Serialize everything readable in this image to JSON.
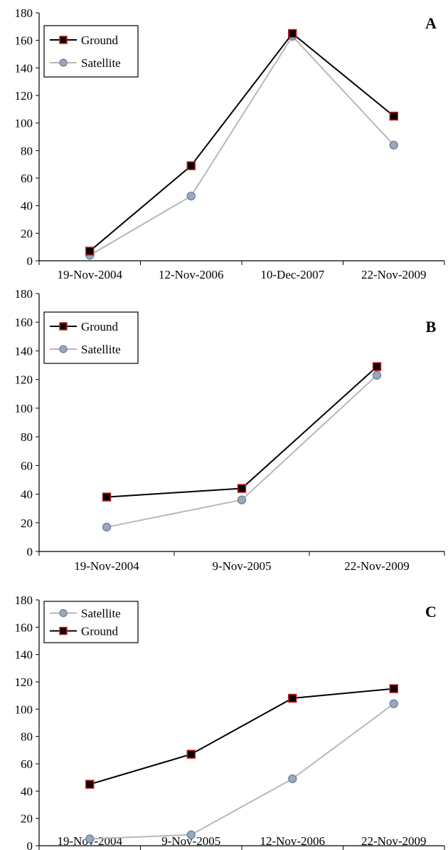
{
  "chart_data": [
    {
      "type": "line",
      "panel_label": "A",
      "title": "",
      "xlabel": "",
      "ylabel": "",
      "categories": [
        "19-Nov-2004",
        "12-Nov-2006",
        "10-Dec-2007",
        "22-Nov-2009"
      ],
      "ylim": [
        0,
        180
      ],
      "yticks": [
        0,
        20,
        40,
        60,
        80,
        100,
        120,
        140,
        160,
        180
      ],
      "legend_position": "top-left",
      "series": [
        {
          "name": "Ground",
          "values": [
            7,
            69,
            165,
            105
          ],
          "color": "#000000",
          "marker": "square",
          "marker_fill": "#000000",
          "marker_edge": "#cc2222"
        },
        {
          "name": "Satellite",
          "values": [
            4,
            47,
            163,
            84
          ],
          "color": "#b8b8b8",
          "marker": "circle",
          "marker_fill": "#9aa8bc",
          "marker_edge": "#6b7f99"
        }
      ]
    },
    {
      "type": "line",
      "panel_label": "B",
      "title": "",
      "xlabel": "",
      "ylabel": "",
      "categories": [
        "19-Nov-2004",
        "9-Nov-2005",
        "22-Nov-2009"
      ],
      "ylim": [
        0,
        180
      ],
      "yticks": [
        0,
        20,
        40,
        60,
        80,
        100,
        120,
        140,
        160,
        180
      ],
      "legend_position": "top-left",
      "series": [
        {
          "name": "Ground",
          "values": [
            38,
            44,
            129
          ],
          "color": "#000000",
          "marker": "square",
          "marker_fill": "#000000",
          "marker_edge": "#cc2222"
        },
        {
          "name": "Satellite",
          "values": [
            17,
            36,
            123
          ],
          "color": "#b8b8b8",
          "marker": "circle",
          "marker_fill": "#9aa8bc",
          "marker_edge": "#6b7f99"
        }
      ]
    },
    {
      "type": "line",
      "panel_label": "C",
      "title": "",
      "xlabel": "",
      "ylabel": "",
      "categories": [
        "19-Nov-2004",
        "9-Nov-2005",
        "12-Nov-2006",
        "22-Nov-2009"
      ],
      "ylim": [
        0,
        180
      ],
      "yticks": [
        0,
        20,
        40,
        60,
        80,
        100,
        120,
        140,
        160,
        180
      ],
      "legend_position": "top-left",
      "series": [
        {
          "name": "Satellite",
          "values": [
            5,
            8,
            49,
            104
          ],
          "color": "#b8b8b8",
          "marker": "circle",
          "marker_fill": "#9aa8bc",
          "marker_edge": "#6b7f99"
        },
        {
          "name": "Ground",
          "values": [
            45,
            67,
            108,
            115
          ],
          "color": "#000000",
          "marker": "square",
          "marker_fill": "#000000",
          "marker_edge": "#cc2222"
        }
      ]
    }
  ]
}
